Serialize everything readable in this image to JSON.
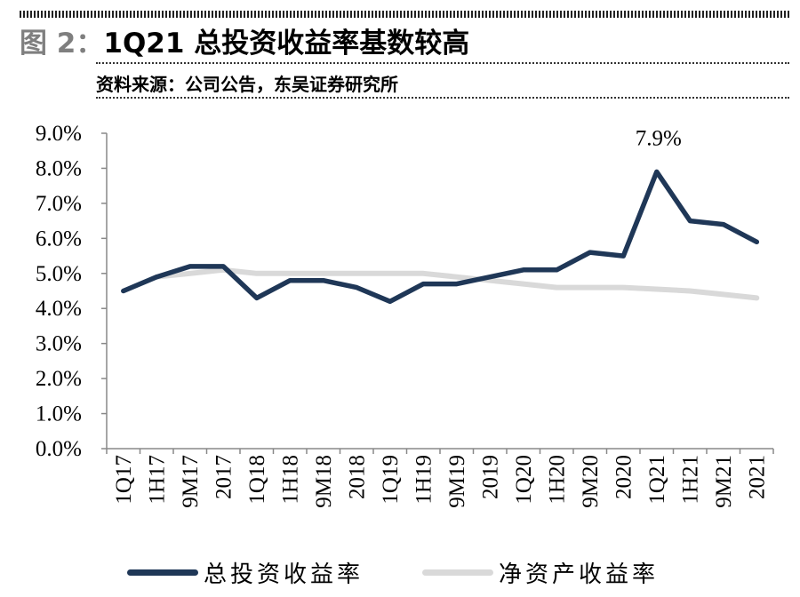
{
  "header": {
    "figure_prefix": "图 2：",
    "title_text": "1Q21 总投资收益率基数较高",
    "source": "资料来源：公司公告，东吴证券研究所"
  },
  "chart_data": {
    "type": "line",
    "title": "1Q21 总投资收益率基数较高",
    "categories": [
      "1Q17",
      "1H17",
      "9M17",
      "2017",
      "1Q18",
      "1H18",
      "9M18",
      "2018",
      "1Q19",
      "1H19",
      "9M19",
      "2019",
      "1Q20",
      "1H20",
      "9M20",
      "2020",
      "1Q21",
      "1H21",
      "9M21",
      "2021"
    ],
    "y_tick_labels": [
      "0.0%",
      "1.0%",
      "2.0%",
      "3.0%",
      "4.0%",
      "5.0%",
      "6.0%",
      "7.0%",
      "8.0%",
      "9.0%"
    ],
    "ylim": [
      0,
      9
    ],
    "grid": false,
    "legend_position": "bottom",
    "series": [
      {
        "name": "总投资收益率",
        "color": "#1f3757",
        "values": [
          4.5,
          4.9,
          5.2,
          5.2,
          4.3,
          4.8,
          4.8,
          4.6,
          4.2,
          4.7,
          4.7,
          4.9,
          5.1,
          5.1,
          5.6,
          5.5,
          7.9,
          6.5,
          6.4,
          5.9
        ]
      },
      {
        "name": "净资产收益率",
        "color": "#d9d9d9",
        "values": [
          null,
          4.9,
          5.0,
          5.1,
          5.0,
          5.0,
          5.0,
          5.0,
          5.0,
          5.0,
          4.9,
          4.8,
          4.7,
          4.6,
          4.6,
          4.6,
          4.55,
          4.5,
          4.4,
          4.3
        ]
      }
    ],
    "annotations": [
      {
        "text": "7.9%",
        "category": "1Q21",
        "value": 7.9
      }
    ]
  }
}
